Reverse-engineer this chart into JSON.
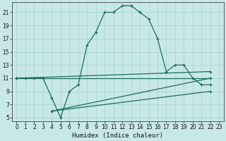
{
  "xlabel": "Humidex (Indice chaleur)",
  "bg_color": "#c8e8e8",
  "grid_color": "#add8d8",
  "line_color": "#1c6b5c",
  "xlim": [
    -0.5,
    23.5
  ],
  "ylim": [
    4.5,
    22.5
  ],
  "xticks": [
    0,
    1,
    2,
    3,
    4,
    5,
    6,
    7,
    8,
    9,
    10,
    11,
    12,
    13,
    14,
    15,
    16,
    17,
    18,
    19,
    20,
    21,
    22,
    23
  ],
  "yticks": [
    5,
    7,
    9,
    11,
    13,
    15,
    17,
    19,
    21
  ],
  "curve1_x": [
    0,
    1,
    2,
    3,
    4,
    5,
    6,
    7,
    8,
    9,
    10,
    11,
    12,
    13,
    14,
    15,
    16,
    17,
    18,
    19,
    20,
    21,
    22
  ],
  "curve1_y": [
    11,
    11,
    11,
    11,
    8,
    5,
    9,
    10,
    16,
    18,
    21,
    21,
    22,
    22,
    21,
    20,
    17,
    12,
    13,
    13,
    11,
    10,
    10
  ],
  "line2_x": [
    0,
    22
  ],
  "line2_y": [
    11,
    11
  ],
  "line3_x": [
    0,
    22
  ],
  "line3_y": [
    11,
    12
  ],
  "line4_x": [
    4,
    22
  ],
  "line4_y": [
    6,
    11
  ],
  "line5_x": [
    4,
    22
  ],
  "line5_y": [
    6,
    9
  ]
}
